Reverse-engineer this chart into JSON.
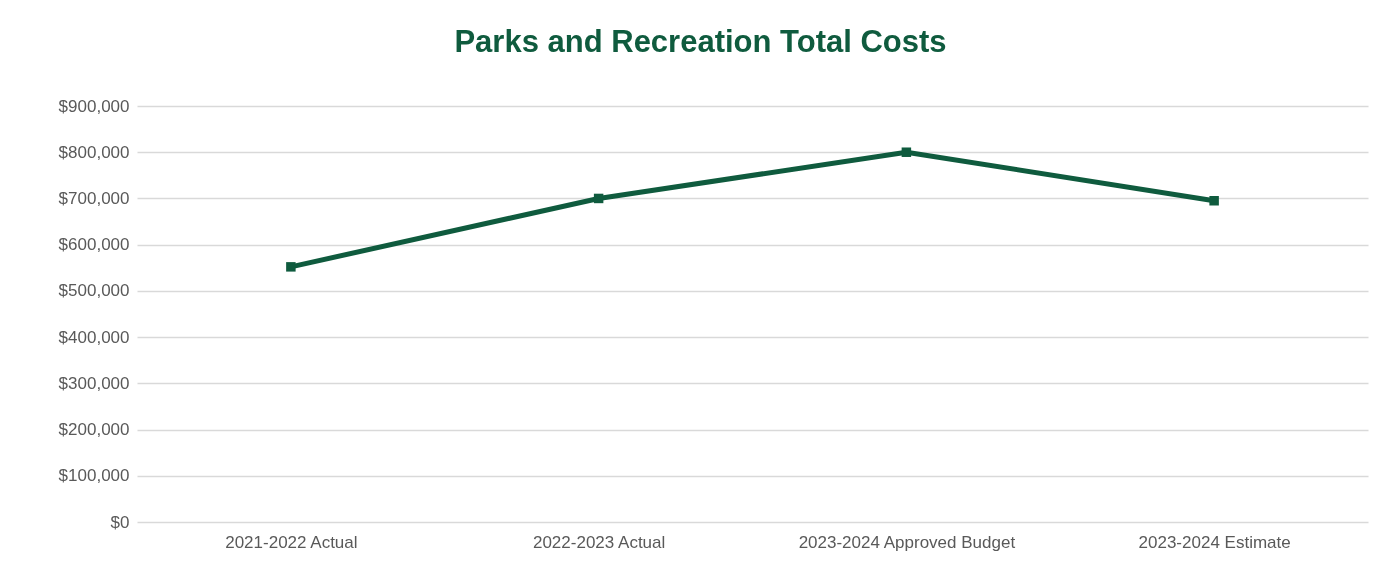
{
  "chart_data": {
    "type": "line",
    "title": "Parks and Recreation Total Costs",
    "categories": [
      "2021-2022 Actual",
      "2022-2023 Actual",
      "2023-2024 Approved Budget",
      "2023-2024 Estimate"
    ],
    "series": [
      {
        "color": "#0f5b3e",
        "values": [
          552000,
          700000,
          800000,
          695000
        ]
      }
    ],
    "ylim": [
      0,
      900000
    ],
    "yticks": [
      {
        "value": 0,
        "label": "$0"
      },
      {
        "value": 100000,
        "label": "$100,000"
      },
      {
        "value": 200000,
        "label": "$200,000"
      },
      {
        "value": 300000,
        "label": "$300,000"
      },
      {
        "value": 400000,
        "label": "$400,000"
      },
      {
        "value": 500000,
        "label": "$500,000"
      },
      {
        "value": 600000,
        "label": "$600,000"
      },
      {
        "value": 700000,
        "label": "$700,000"
      },
      {
        "value": 800000,
        "label": "$800,000"
      },
      {
        "value": 900000,
        "label": "$900,000"
      }
    ],
    "grid": "y",
    "marker": "square",
    "line_style": "solid"
  }
}
